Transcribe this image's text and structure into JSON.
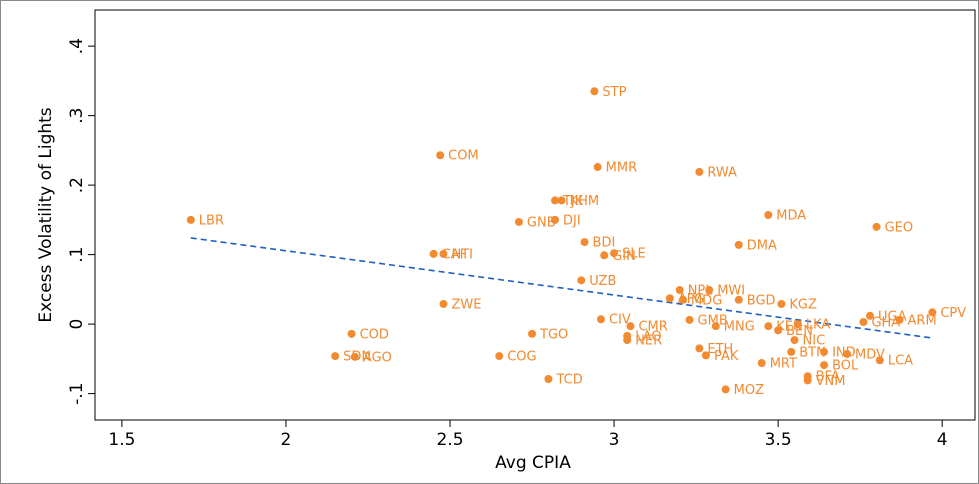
{
  "chart_data": {
    "type": "scatter",
    "x_label": "Avg CPIA",
    "y_label": "Excess Volatility of Lights",
    "color": "#f28a30",
    "fit_color": "#1f5fbf",
    "labels": [
      "LBR",
      "COM",
      "STP",
      "MMR",
      "RWA",
      "TJK",
      "KHM",
      "DJI",
      "GNB",
      "MDA",
      "GEO",
      "BDI",
      "GIN",
      "SLE",
      "DMA",
      "CAF",
      "HTI",
      "UZB",
      "ZWE",
      "NPL",
      "MWI",
      "AFG",
      "MDG",
      "BGD",
      "KGZ",
      "CPV",
      "UGA",
      "GHA",
      "ARM",
      "COD",
      "CIV",
      "GMB",
      "CMR",
      "TGO",
      "MNG",
      "LAO",
      "NER",
      "KEN",
      "BEN",
      "LKA",
      "NIC",
      "ETH",
      "PAK",
      "SDN",
      "AGO",
      "COG",
      "TCD",
      "MOZ",
      "MDV",
      "LCA",
      "MRT",
      "BOL",
      "BFA",
      "VNM",
      "BTN",
      "IND"
    ],
    "x": [
      1.71,
      2.47,
      2.94,
      2.95,
      3.26,
      2.82,
      2.84,
      2.82,
      2.71,
      3.47,
      3.8,
      2.91,
      2.97,
      3.0,
      3.38,
      2.45,
      2.48,
      2.9,
      2.48,
      3.2,
      3.29,
      3.17,
      3.21,
      3.38,
      3.51,
      3.97,
      3.78,
      3.76,
      3.87,
      2.2,
      2.96,
      3.23,
      3.05,
      2.75,
      3.31,
      3.04,
      3.04,
      3.47,
      3.5,
      3.56,
      3.55,
      3.26,
      3.28,
      2.15,
      2.21,
      2.65,
      2.8,
      3.34,
      3.71,
      3.81,
      3.45,
      3.64,
      3.59,
      3.59,
      3.54,
      3.64
    ],
    "values": [
      0.15,
      0.243,
      0.335,
      0.226,
      0.219,
      0.178,
      0.178,
      0.15,
      0.147,
      0.157,
      0.14,
      0.118,
      0.099,
      0.102,
      0.114,
      0.101,
      0.101,
      0.063,
      0.029,
      0.049,
      0.049,
      0.037,
      0.035,
      0.035,
      0.029,
      0.017,
      0.012,
      0.003,
      0.006,
      -0.014,
      0.007,
      0.006,
      -0.003,
      -0.014,
      -0.003,
      -0.017,
      -0.023,
      -0.003,
      -0.009,
      0.0,
      -0.023,
      -0.035,
      -0.045,
      -0.046,
      -0.047,
      -0.046,
      -0.079,
      -0.094,
      -0.043,
      -0.052,
      -0.056,
      -0.059,
      -0.075,
      -0.081,
      -0.04,
      -0.04
    ],
    "fit_x": [
      1.71,
      3.97
    ],
    "fit_y": [
      0.124,
      -0.02
    ],
    "xlim": [
      1.418,
      4.1
    ],
    "ylim": [
      -0.138,
      0.452
    ],
    "xticks": [
      1.5,
      2,
      2.5,
      3,
      3.5,
      4
    ],
    "yticks": [
      {
        "value": -0.1,
        "label": "-.1"
      },
      0,
      {
        "value": 0.1,
        "label": ".1"
      },
      {
        "value": 0.2,
        "label": ".2"
      },
      {
        "value": 0.3,
        "label": ".3"
      },
      {
        "value": 0.4,
        "label": ".4"
      }
    ]
  }
}
